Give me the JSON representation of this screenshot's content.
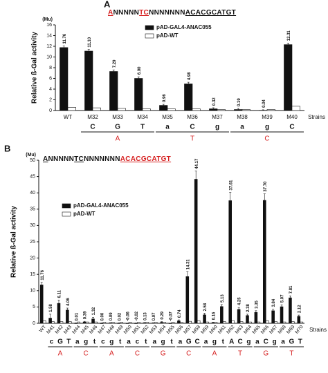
{
  "chart_data": [
    {
      "type": "bar",
      "panel_label": "A",
      "unit_label": "(Mu)",
      "y_label": "Relative ß-Gal activity",
      "x_label": "Strains",
      "sequence": [
        {
          "text": "A",
          "color": "#d62020",
          "underline": true
        },
        {
          "text": "NNNNN",
          "color": "#111111",
          "underline": false
        },
        {
          "text": "TC",
          "color": "#d62020",
          "underline": true
        },
        {
          "text": "NNNNNNN",
          "color": "#111111",
          "underline": false
        },
        {
          "text": "ACACGCATGT",
          "color": "#111111",
          "underline": true
        }
      ],
      "categories": [
        "WT",
        "M32",
        "M33",
        "M34",
        "M35",
        "M36",
        "M37",
        "M38",
        "M39",
        "M40"
      ],
      "mutation_letters": [
        null,
        "C",
        "G",
        "T",
        "a",
        "C",
        "g",
        "a",
        "g",
        "C"
      ],
      "group_labels": [
        "A",
        "T",
        "C"
      ],
      "group_color": "#d62020",
      "series": [
        {
          "name": "pAD-GAL4-ANAC055",
          "color": "#111111",
          "values": [
            11.76,
            11.1,
            7.29,
            6.0,
            0.96,
            4.98,
            0.32,
            0.19,
            0.04,
            12.31
          ],
          "value_labels": [
            "11.76",
            "11.10",
            "7.29",
            "6.00",
            "0.96",
            "4.98",
            "0.32",
            "0.19",
            "0.04",
            "12.31"
          ],
          "errors": [
            0.3,
            0.3,
            0.3,
            0.3,
            0.2,
            0.3,
            0.2,
            0.2,
            0.1,
            0.3
          ]
        },
        {
          "name": "pAD-WT",
          "color": "#ffffff",
          "values": [
            0.6,
            0.5,
            0.4,
            0.3,
            0.3,
            0.3,
            0.2,
            0.2,
            0.2,
            0.8
          ]
        }
      ],
      "ylim": [
        0,
        16
      ],
      "yticks": [
        0,
        2,
        4,
        6,
        8,
        10,
        12,
        14,
        16
      ],
      "legend_position": "upper-right"
    },
    {
      "type": "bar",
      "panel_label": "B",
      "unit_label": "(Mu)",
      "y_label": "Relative ß-Gal activity",
      "x_label": "Strains",
      "sequence": [
        {
          "text": "A",
          "color": "#111111",
          "underline": true
        },
        {
          "text": "NNNNN",
          "color": "#111111",
          "underline": false
        },
        {
          "text": "TC",
          "color": "#111111",
          "underline": true
        },
        {
          "text": "NNNNNNN",
          "color": "#111111",
          "underline": false
        },
        {
          "text": "ACACGCATGT",
          "color": "#d62020",
          "underline": true
        }
      ],
      "categories": [
        "WT",
        "M41",
        "M42",
        "M43",
        "M44",
        "M45",
        "M46",
        "M47",
        "M48",
        "M49",
        "M50",
        "M51",
        "M52",
        "M53",
        "M54",
        "M55",
        "M56",
        "M57",
        "M58",
        "M59",
        "M60",
        "M61",
        "M62",
        "M63",
        "M64",
        "M65",
        "M66",
        "M67",
        "M68",
        "M69",
        "M70"
      ],
      "mutation_letters": [
        null,
        "c",
        "G",
        "T",
        "a",
        "g",
        "t",
        "c",
        "g",
        "t",
        "a",
        "c",
        "t",
        "a",
        "g",
        "t",
        "a",
        "G",
        "C",
        "a",
        "g",
        "t",
        "A",
        "C",
        "g",
        "a",
        "C",
        "g",
        "a",
        "G",
        "T"
      ],
      "group_labels": [
        "A",
        "C",
        "A",
        "C",
        "G",
        "C",
        "A",
        "T",
        "G",
        "T"
      ],
      "group_color": "#d62020",
      "series": [
        {
          "name": "pAD-GAL4-ANAC055",
          "color": "#111111",
          "values": [
            11.76,
            1.58,
            6.11,
            4.06,
            0.01,
            0.39,
            1.32,
            0.0,
            0.09,
            0.02,
            -0.06,
            -0.02,
            0.13,
            0.07,
            0.29,
            -0.07,
            0.74,
            14.31,
            44.17,
            2.58,
            0.16,
            5.13,
            37.61,
            4.25,
            2.38,
            3.35,
            37.7,
            3.84,
            5.07,
            7.81,
            2.12
          ],
          "value_labels": [
            "11.76",
            "1.58",
            "6.11",
            "4.06",
            "0.01",
            "0.39",
            "1.32",
            "0.00",
            "0.09",
            "0.02",
            "-0.06",
            "-0.02",
            "0.13",
            "0.07",
            "0.29",
            "-0.07",
            "0.74",
            "14.31",
            "44.17",
            "2.58",
            "0.16",
            "5.13",
            "37.61",
            "4.25",
            "2.38",
            "3.35",
            "37.70",
            "3.84",
            "5.07",
            "7.81",
            "2.12"
          ],
          "errors": [
            0.8,
            1.2,
            1.0,
            0.6,
            0.1,
            0.2,
            0.5,
            0.1,
            0.1,
            0.1,
            0.1,
            0.1,
            0.1,
            0.1,
            0.2,
            0.1,
            0.3,
            1.5,
            2.5,
            0.5,
            0.2,
            0.6,
            2.5,
            0.6,
            0.4,
            0.5,
            2.0,
            0.5,
            0.6,
            0.6,
            0.4
          ]
        },
        {
          "name": "pAD-WT",
          "color": "#ffffff",
          "values": [
            0.8,
            0.5,
            0.5,
            0.5,
            0.4,
            0.4,
            0.4,
            0.3,
            0.3,
            0.3,
            0.3,
            0.3,
            0.3,
            0.3,
            0.3,
            0.3,
            0.3,
            0.6,
            0.8,
            0.4,
            0.3,
            0.5,
            0.8,
            0.5,
            0.4,
            0.4,
            0.8,
            0.5,
            0.4,
            0.5,
            0.4
          ]
        }
      ],
      "ylim": [
        0,
        50
      ],
      "yticks": [
        0,
        5,
        10,
        15,
        20,
        25,
        30,
        35,
        40,
        45,
        50
      ],
      "legend_position": "upper-left"
    }
  ]
}
